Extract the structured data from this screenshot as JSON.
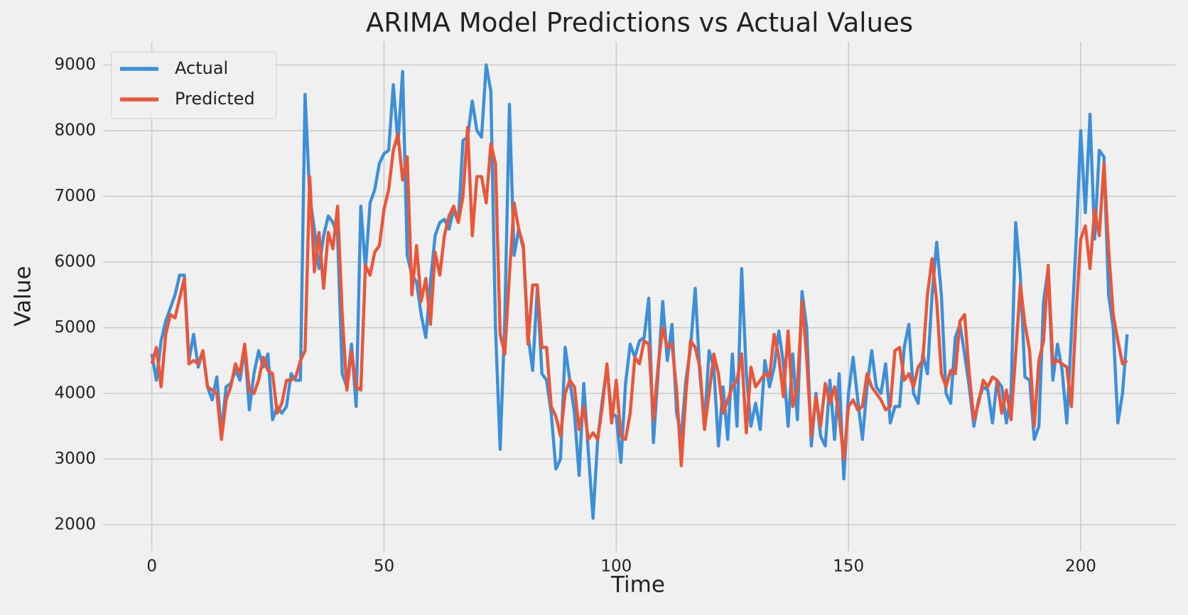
{
  "chart_data": {
    "type": "line",
    "title": "ARIMA Model Predictions vs Actual Values",
    "x_label": "Time",
    "y_label": "Value",
    "xlim": [
      -10.5,
      220.5
    ],
    "ylim": [
      1600,
      9350
    ],
    "xticks": [
      0,
      50,
      100,
      150,
      200
    ],
    "yticks": [
      2000,
      3000,
      4000,
      5000,
      6000,
      7000,
      8000,
      9000
    ],
    "grid": true,
    "legend": "upper left",
    "x": [
      0,
      1,
      2,
      3,
      4,
      5,
      6,
      7,
      8,
      9,
      10,
      11,
      12,
      13,
      14,
      15,
      16,
      17,
      18,
      19,
      20,
      21,
      22,
      23,
      24,
      25,
      26,
      27,
      28,
      29,
      30,
      31,
      32,
      33,
      34,
      35,
      36,
      37,
      38,
      39,
      40,
      41,
      42,
      43,
      44,
      45,
      46,
      47,
      48,
      49,
      50,
      51,
      52,
      53,
      54,
      55,
      56,
      57,
      58,
      59,
      60,
      61,
      62,
      63,
      64,
      65,
      66,
      67,
      68,
      69,
      70,
      71,
      72,
      73,
      74,
      75,
      76,
      77,
      78,
      79,
      80,
      81,
      82,
      83,
      84,
      85,
      86,
      87,
      88,
      89,
      90,
      91,
      92,
      93,
      94,
      95,
      96,
      97,
      98,
      99,
      100,
      101,
      102,
      103,
      104,
      105,
      106,
      107,
      108,
      109,
      110,
      111,
      112,
      113,
      114,
      115,
      116,
      117,
      118,
      119,
      120,
      121,
      122,
      123,
      124,
      125,
      126,
      127,
      128,
      129,
      130,
      131,
      132,
      133,
      134,
      135,
      136,
      137,
      138,
      139,
      140,
      141,
      142,
      143,
      144,
      145,
      146,
      147,
      148,
      149,
      150,
      151,
      152,
      153,
      154,
      155,
      156,
      157,
      158,
      159,
      160,
      161,
      162,
      163,
      164,
      165,
      166,
      167,
      168,
      169,
      170,
      171,
      172,
      173,
      174,
      175,
      176,
      177,
      178,
      179,
      180,
      181,
      182,
      183,
      184,
      185,
      186,
      187,
      188,
      189,
      190,
      191,
      192,
      193,
      194,
      195,
      196,
      197,
      198,
      199,
      200,
      201,
      202,
      203,
      204,
      205,
      206,
      207,
      208,
      209,
      210
    ],
    "series": [
      {
        "name": "Actual",
        "color": "#3d8fd7",
        "values": [
          4600,
          4200,
          4800,
          5100,
          5300,
          5500,
          5800,
          5800,
          4500,
          4900,
          4400,
          4650,
          4100,
          3900,
          4250,
          3400,
          4100,
          4150,
          4350,
          4200,
          4700,
          3750,
          4300,
          4650,
          4400,
          4600,
          3600,
          3800,
          3700,
          3800,
          4300,
          4200,
          4200,
          8550,
          7000,
          6500,
          5900,
          6400,
          6700,
          6600,
          6400,
          4300,
          4100,
          4750,
          3800,
          6850,
          5900,
          6900,
          7100,
          7500,
          7650,
          7700,
          8700,
          7800,
          8900,
          6100,
          5800,
          5700,
          5200,
          4850,
          5700,
          6400,
          6600,
          6650,
          6500,
          6800,
          6600,
          7850,
          7900,
          8450,
          8000,
          7900,
          9000,
          8600,
          5000,
          3150,
          5100,
          8400,
          6100,
          6500,
          6200,
          4900,
          4350,
          5600,
          4300,
          4200,
          3700,
          2850,
          3000,
          4700,
          4200,
          3700,
          2750,
          4150,
          3100,
          2100,
          3300,
          3900,
          4400,
          3700,
          3650,
          2950,
          4150,
          4750,
          4550,
          4800,
          4850,
          5450,
          3250,
          4300,
          5400,
          4500,
          5050,
          3700,
          3350,
          4200,
          4700,
          5600,
          4300,
          3550,
          4650,
          4400,
          3200,
          4100,
          3300,
          4600,
          3500,
          5900,
          4300,
          3500,
          3850,
          3450,
          4500,
          4100,
          4400,
          4950,
          4450,
          3500,
          4600,
          3600,
          5550,
          5000,
          3200,
          4000,
          3350,
          3200,
          4200,
          3300,
          4300,
          2700,
          4000,
          4550,
          3900,
          3300,
          4100,
          4650,
          4100,
          4000,
          4450,
          3550,
          3800,
          3800,
          4700,
          5050,
          4000,
          3850,
          4600,
          4300,
          5500,
          6300,
          5500,
          4000,
          3850,
          4850,
          5050,
          4600,
          4100,
          3500,
          3900,
          4100,
          4050,
          3550,
          4200,
          4100,
          3550,
          4000,
          6600,
          5800,
          4250,
          4200,
          3300,
          3500,
          5400,
          5900,
          4200,
          4750,
          4350,
          3550,
          4900,
          6300,
          8000,
          6750,
          8250,
          6350,
          7700,
          7600,
          5500,
          5000,
          3550,
          4000,
          4900
        ]
      },
      {
        "name": "Predicted",
        "color": "#e9573a",
        "values": [
          4450,
          4700,
          4100,
          4900,
          5200,
          5150,
          5450,
          5750,
          4450,
          4500,
          4450,
          4650,
          4100,
          4050,
          4000,
          3300,
          3900,
          4100,
          4450,
          4300,
          4750,
          4050,
          4000,
          4200,
          4550,
          4350,
          4300,
          3700,
          3850,
          4200,
          4200,
          4250,
          4500,
          4650,
          7300,
          5850,
          6450,
          5600,
          6450,
          6200,
          6850,
          5200,
          4050,
          4650,
          4100,
          4050,
          5950,
          5800,
          6150,
          6250,
          6800,
          7100,
          7700,
          7950,
          7250,
          7600,
          5500,
          6250,
          5400,
          5750,
          5050,
          6150,
          5800,
          6400,
          6700,
          6850,
          6600,
          7000,
          8050,
          6400,
          7300,
          7300,
          6900,
          7800,
          7500,
          4900,
          4600,
          5800,
          6900,
          6500,
          6250,
          4750,
          5650,
          5650,
          4700,
          4700,
          3800,
          3650,
          3350,
          4000,
          4200,
          4100,
          3450,
          3800,
          3300,
          3400,
          3300,
          3800,
          4450,
          3550,
          4200,
          3350,
          3300,
          3700,
          4550,
          4450,
          4800,
          4750,
          3600,
          4400,
          5000,
          4700,
          4750,
          4050,
          2900,
          4000,
          4800,
          4700,
          4400,
          3450,
          4000,
          4600,
          4300,
          3700,
          3900,
          4100,
          4200,
          4600,
          3400,
          4400,
          4100,
          4200,
          4300,
          4250,
          4900,
          4550,
          3950,
          4950,
          3800,
          4100,
          5400,
          4550,
          3350,
          3950,
          3500,
          4150,
          3850,
          4100,
          3650,
          3000,
          3800,
          3900,
          3750,
          3800,
          4300,
          4100,
          4000,
          3900,
          3750,
          3800,
          4650,
          4700,
          4200,
          4300,
          4100,
          4400,
          4500,
          5500,
          6050,
          5400,
          4300,
          4100,
          4350,
          4300,
          5100,
          5200,
          4300,
          3600,
          3850,
          4200,
          4100,
          4250,
          4200,
          3700,
          4050,
          3600,
          4600,
          5650,
          5050,
          4650,
          3500,
          4500,
          4800,
          5950,
          4450,
          4500,
          4450,
          4400,
          3800,
          5200,
          6350,
          6550,
          5900,
          6800,
          6400,
          7500,
          6200,
          5200,
          4800,
          4450,
          4500
        ]
      }
    ]
  }
}
